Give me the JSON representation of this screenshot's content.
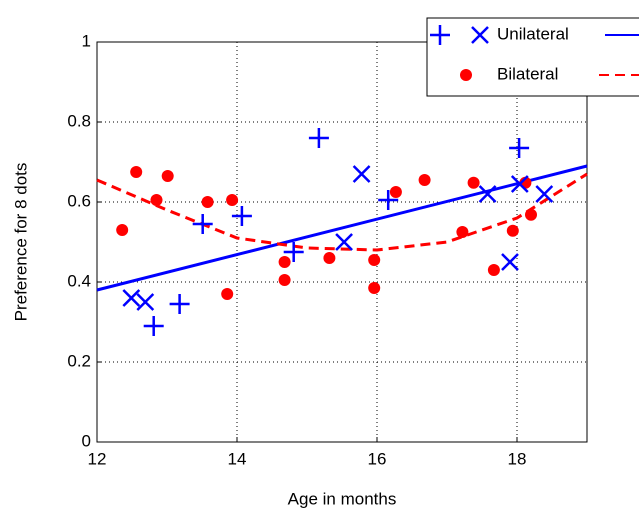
{
  "chart_data": {
    "type": "scatter",
    "xlabel": "Age in months",
    "ylabel": "Preference for 8 dots",
    "xlim": [
      12,
      19
    ],
    "ylim": [
      0,
      1
    ],
    "xticks": [
      12,
      14,
      16,
      18
    ],
    "yticks": [
      0,
      0.2,
      0.4,
      0.6,
      0.8,
      1
    ],
    "grid": true,
    "legend": "top-right",
    "series": [
      {
        "name": "Unilateral",
        "color": "#0000ff",
        "plus_x": [
          12.81,
          13.18,
          13.51,
          14.07,
          14.81,
          15.17,
          16.16,
          18.03
        ],
        "plus_y": [
          0.29,
          0.345,
          0.545,
          0.565,
          0.475,
          0.76,
          0.605,
          0.735
        ],
        "cross_x": [
          12.49,
          12.69,
          15.53,
          15.78,
          17.58,
          17.9,
          18.04,
          18.39
        ],
        "cross_y": [
          0.36,
          0.35,
          0.5,
          0.67,
          0.62,
          0.45,
          0.645,
          0.62
        ],
        "fit_x": [
          12,
          19
        ],
        "fit_y": [
          0.38,
          0.69
        ]
      },
      {
        "name": "Bilateral",
        "color": "#ff0000",
        "x": [
          12.36,
          12.56,
          12.85,
          13.01,
          13.58,
          13.86,
          13.93,
          14.68,
          14.68,
          15.32,
          15.96,
          15.96,
          16.27,
          16.68,
          17.22,
          17.38,
          17.67,
          17.94,
          18.12,
          18.2
        ],
        "y": [
          0.53,
          0.675,
          0.605,
          0.665,
          0.6,
          0.37,
          0.605,
          0.45,
          0.405,
          0.46,
          0.385,
          0.455,
          0.625,
          0.655,
          0.525,
          0.648,
          0.43,
          0.528,
          0.648,
          0.568
        ],
        "fit_x": [
          12,
          13,
          14,
          15,
          16,
          17,
          18,
          19
        ],
        "fit_y": [
          0.655,
          0.58,
          0.51,
          0.485,
          0.48,
          0.5,
          0.56,
          0.67
        ]
      }
    ]
  }
}
